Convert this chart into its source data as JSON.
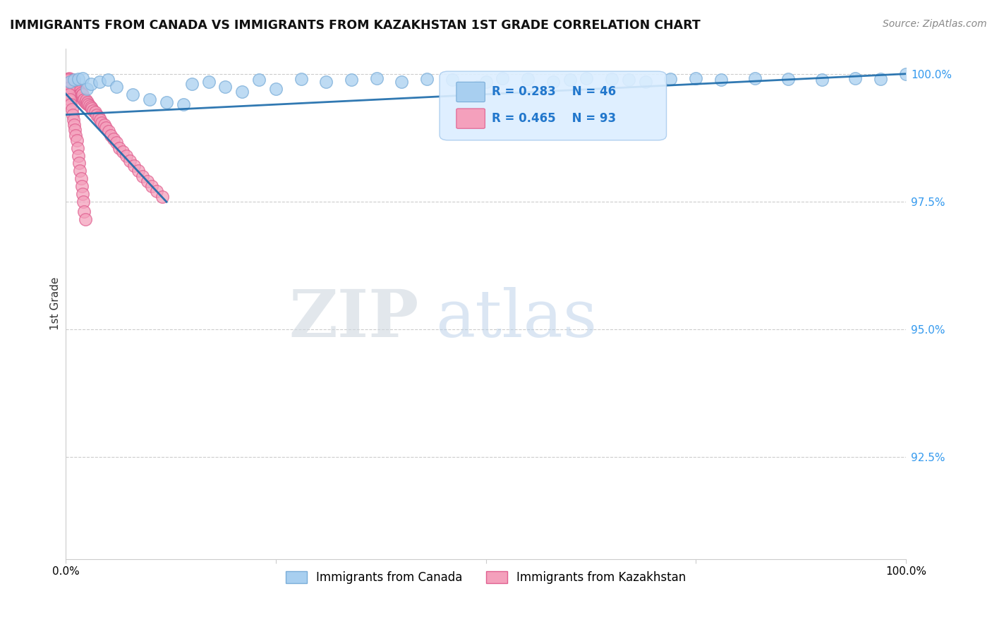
{
  "title": "IMMIGRANTS FROM CANADA VS IMMIGRANTS FROM KAZAKHSTAN 1ST GRADE CORRELATION CHART",
  "source": "Source: ZipAtlas.com",
  "ylabel": "1st Grade",
  "legend_canada": "Immigrants from Canada",
  "legend_kazakhstan": "Immigrants from Kazakhstan",
  "R_canada": 0.283,
  "N_canada": 46,
  "R_kazakhstan": 0.465,
  "N_kazakhstan": 93,
  "canada_color": "#a8cff0",
  "canada_edge": "#7aadd8",
  "kazakhstan_color": "#f4a0bc",
  "kazakhstan_edge": "#e06090",
  "trendline_color": "#1a6aaa",
  "ytick_labels": [
    "100.0%",
    "97.5%",
    "95.0%",
    "92.5%"
  ],
  "ytick_values": [
    1.0,
    0.975,
    0.95,
    0.925
  ],
  "ymin": 0.905,
  "ymax": 1.005,
  "xmin": 0.0,
  "xmax": 1.0,
  "canada_x": [
    0.005,
    0.01,
    0.015,
    0.02,
    0.025,
    0.03,
    0.04,
    0.05,
    0.06,
    0.08,
    0.1,
    0.12,
    0.14,
    0.15,
    0.17,
    0.19,
    0.21,
    0.23,
    0.25,
    0.28,
    0.31,
    0.34,
    0.37,
    0.4,
    0.43,
    0.46,
    0.49,
    0.49,
    0.5,
    0.52,
    0.55,
    0.58,
    0.6,
    0.62,
    0.65,
    0.67,
    0.69,
    0.72,
    0.75,
    0.78,
    0.82,
    0.86,
    0.9,
    0.94,
    0.97,
    1.0
  ],
  "canada_y": [
    0.9985,
    0.9988,
    0.999,
    0.9992,
    0.997,
    0.998,
    0.9985,
    0.9988,
    0.9975,
    0.996,
    0.995,
    0.9945,
    0.994,
    0.998,
    0.9985,
    0.9975,
    0.9965,
    0.9988,
    0.997,
    0.999,
    0.9985,
    0.9988,
    0.9992,
    0.9985,
    0.999,
    0.9988,
    0.9975,
    0.997,
    0.9985,
    0.9992,
    0.999,
    0.9985,
    0.9988,
    0.9992,
    0.999,
    0.9988,
    0.9985,
    0.999,
    0.9992,
    0.9988,
    0.9992,
    0.999,
    0.9988,
    0.9992,
    0.999,
    1.0
  ],
  "kaz_x": [
    0.002,
    0.002,
    0.003,
    0.003,
    0.003,
    0.004,
    0.004,
    0.005,
    0.005,
    0.005,
    0.006,
    0.006,
    0.006,
    0.007,
    0.007,
    0.008,
    0.008,
    0.009,
    0.009,
    0.01,
    0.01,
    0.011,
    0.011,
    0.012,
    0.012,
    0.013,
    0.013,
    0.014,
    0.015,
    0.015,
    0.016,
    0.016,
    0.017,
    0.018,
    0.018,
    0.019,
    0.02,
    0.02,
    0.021,
    0.022,
    0.023,
    0.024,
    0.025,
    0.026,
    0.027,
    0.028,
    0.03,
    0.031,
    0.033,
    0.035,
    0.037,
    0.039,
    0.041,
    0.043,
    0.046,
    0.048,
    0.051,
    0.054,
    0.057,
    0.06,
    0.064,
    0.068,
    0.072,
    0.076,
    0.081,
    0.086,
    0.091,
    0.097,
    0.102,
    0.108,
    0.115,
    0.002,
    0.003,
    0.004,
    0.005,
    0.006,
    0.007,
    0.008,
    0.009,
    0.01,
    0.011,
    0.012,
    0.013,
    0.014,
    0.015,
    0.016,
    0.017,
    0.018,
    0.019,
    0.02,
    0.021,
    0.022,
    0.023
  ],
  "kaz_y": [
    0.999,
    0.9985,
    0.9988,
    0.9982,
    0.9978,
    0.9992,
    0.9975,
    0.9988,
    0.998,
    0.9972,
    0.9985,
    0.9978,
    0.997,
    0.9982,
    0.9974,
    0.9988,
    0.9975,
    0.998,
    0.9972,
    0.9985,
    0.9975,
    0.9978,
    0.997,
    0.9975,
    0.9968,
    0.9972,
    0.9965,
    0.9968,
    0.997,
    0.9962,
    0.9965,
    0.9958,
    0.996,
    0.9962,
    0.9955,
    0.9958,
    0.9952,
    0.996,
    0.9948,
    0.995,
    0.9945,
    0.9948,
    0.9942,
    0.9945,
    0.994,
    0.9938,
    0.9935,
    0.9932,
    0.9928,
    0.9925,
    0.992,
    0.9915,
    0.991,
    0.9905,
    0.99,
    0.9895,
    0.9888,
    0.988,
    0.9872,
    0.9865,
    0.9855,
    0.9848,
    0.984,
    0.983,
    0.982,
    0.981,
    0.98,
    0.979,
    0.978,
    0.977,
    0.976,
    0.9988,
    0.9972,
    0.996,
    0.995,
    0.994,
    0.993,
    0.992,
    0.991,
    0.99,
    0.989,
    0.988,
    0.987,
    0.9855,
    0.984,
    0.9825,
    0.981,
    0.9795,
    0.978,
    0.9765,
    0.975,
    0.973,
    0.9715
  ],
  "kaz_trendline_x": [
    0.0,
    0.12
  ],
  "canada_trendline_x": [
    0.0,
    1.0
  ],
  "canada_trendline_y_start": 0.992,
  "canada_trendline_y_end": 1.0,
  "watermark_zip": "ZIP",
  "watermark_atlas": "atlas"
}
